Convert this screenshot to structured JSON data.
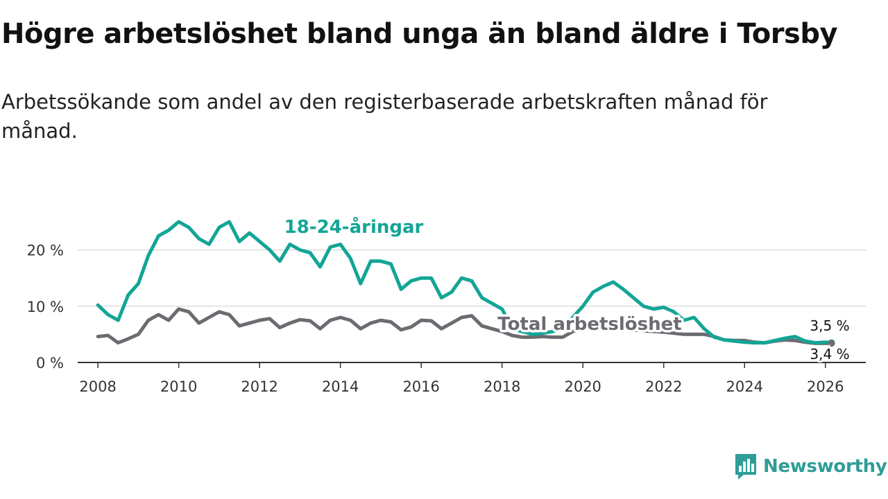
{
  "title": "Högre arbetslöshet bland unga än bland äldre i Torsby",
  "subtitle": "Arbetssökande som andel av den registerbaserade arbetskraften månad för månad.",
  "brand": {
    "name": "Newsworthy",
    "icon": "chart-bubble-icon"
  },
  "colors": {
    "youth": "#13a596",
    "total": "#6d6b71",
    "grid": "#dcdcdc",
    "axis": "#333333",
    "brand": "#2f9d97"
  },
  "chart_data": {
    "type": "line",
    "x_unit": "year",
    "xlim": [
      2007.5,
      2027.0
    ],
    "ylim": [
      0,
      25
    ],
    "x_ticks": [
      2008,
      2010,
      2012,
      2014,
      2016,
      2018,
      2020,
      2022,
      2024,
      2026
    ],
    "x_tick_labels": [
      "2008",
      "2010",
      "2012",
      "2014",
      "2016",
      "2018",
      "2020",
      "2022",
      "2024",
      "2026"
    ],
    "y_ticks": [
      0,
      10,
      20
    ],
    "y_tick_labels": [
      "0 %",
      "10 %",
      "20 %"
    ],
    "grid": true,
    "series": [
      {
        "name": "18-24-åringar",
        "label_text": "18-24-åringar",
        "end_label": "3,5 %",
        "x": [
          2008.0,
          2008.25,
          2008.5,
          2008.75,
          2009.0,
          2009.25,
          2009.5,
          2009.75,
          2010.0,
          2010.25,
          2010.5,
          2010.75,
          2011.0,
          2011.25,
          2011.5,
          2011.75,
          2012.0,
          2012.25,
          2012.5,
          2012.75,
          2013.0,
          2013.25,
          2013.5,
          2013.75,
          2014.0,
          2014.25,
          2014.5,
          2014.75,
          2015.0,
          2015.25,
          2015.5,
          2015.75,
          2016.0,
          2016.25,
          2016.5,
          2016.75,
          2017.0,
          2017.25,
          2017.5,
          2017.75,
          2018.0,
          2018.25,
          2018.5,
          2018.75,
          2019.0,
          2019.25,
          2019.5,
          2019.75,
          2020.0,
          2020.25,
          2020.5,
          2020.75,
          2021.0,
          2021.25,
          2021.5,
          2021.75,
          2022.0,
          2022.25,
          2022.5,
          2022.75,
          2023.0,
          2023.25,
          2023.5,
          2023.75,
          2024.0,
          2024.25,
          2024.5,
          2024.75,
          2025.0,
          2025.25,
          2025.5,
          2025.75,
          2026.0,
          2026.15
        ],
        "y": [
          10.2,
          8.5,
          7.5,
          12.0,
          14.0,
          19.0,
          22.5,
          23.5,
          25.0,
          24.0,
          22.0,
          21.0,
          24.0,
          25.0,
          21.5,
          23.0,
          21.5,
          20.0,
          18.0,
          21.0,
          20.0,
          19.5,
          17.0,
          20.5,
          21.0,
          18.5,
          14.0,
          18.0,
          18.0,
          17.5,
          13.0,
          14.5,
          15.0,
          15.0,
          11.5,
          12.5,
          15.0,
          14.5,
          11.5,
          10.5,
          9.5,
          6.0,
          5.5,
          5.0,
          5.2,
          5.5,
          6.0,
          8.0,
          10.0,
          12.5,
          13.5,
          14.3,
          13.0,
          11.5,
          10.0,
          9.5,
          9.8,
          9.0,
          7.5,
          8.0,
          6.0,
          4.5,
          4.0,
          3.8,
          3.6,
          3.5,
          3.5,
          3.9,
          4.3,
          4.6,
          3.8,
          3.5,
          3.6,
          3.5
        ]
      },
      {
        "name": "Total arbetslöshet",
        "label_text": "Total arbetslöshet",
        "end_label": "3,4 %",
        "x": [
          2008.0,
          2008.25,
          2008.5,
          2008.75,
          2009.0,
          2009.25,
          2009.5,
          2009.75,
          2010.0,
          2010.25,
          2010.5,
          2010.75,
          2011.0,
          2011.25,
          2011.5,
          2011.75,
          2012.0,
          2012.25,
          2012.5,
          2012.75,
          2013.0,
          2013.25,
          2013.5,
          2013.75,
          2014.0,
          2014.25,
          2014.5,
          2014.75,
          2015.0,
          2015.25,
          2015.5,
          2015.75,
          2016.0,
          2016.25,
          2016.5,
          2016.75,
          2017.0,
          2017.25,
          2017.5,
          2017.75,
          2018.0,
          2018.25,
          2018.5,
          2018.75,
          2019.0,
          2019.25,
          2019.5,
          2019.75,
          2020.0,
          2020.25,
          2020.5,
          2020.75,
          2021.0,
          2021.25,
          2021.5,
          2021.75,
          2022.0,
          2022.25,
          2022.5,
          2022.75,
          2023.0,
          2023.25,
          2023.5,
          2023.75,
          2024.0,
          2024.25,
          2024.5,
          2024.75,
          2025.0,
          2025.25,
          2025.5,
          2025.75,
          2026.0,
          2026.15
        ],
        "y": [
          4.6,
          4.8,
          3.5,
          4.2,
          5.0,
          7.5,
          8.5,
          7.5,
          9.5,
          9.0,
          7.0,
          8.0,
          9.0,
          8.5,
          6.5,
          7.0,
          7.5,
          7.8,
          6.2,
          7.0,
          7.6,
          7.4,
          6.0,
          7.5,
          8.0,
          7.5,
          6.0,
          7.0,
          7.5,
          7.2,
          5.8,
          6.3,
          7.5,
          7.4,
          6.0,
          7.0,
          8.0,
          8.3,
          6.5,
          6.0,
          5.5,
          4.8,
          4.5,
          4.5,
          4.6,
          4.5,
          4.5,
          5.5,
          6.0,
          6.5,
          6.5,
          6.5,
          6.0,
          5.8,
          5.6,
          5.5,
          5.4,
          5.2,
          5.0,
          5.0,
          5.0,
          4.6,
          4.0,
          3.9,
          3.9,
          3.6,
          3.5,
          3.8,
          4.0,
          3.9,
          3.6,
          3.4,
          3.4,
          3.4
        ]
      }
    ]
  }
}
